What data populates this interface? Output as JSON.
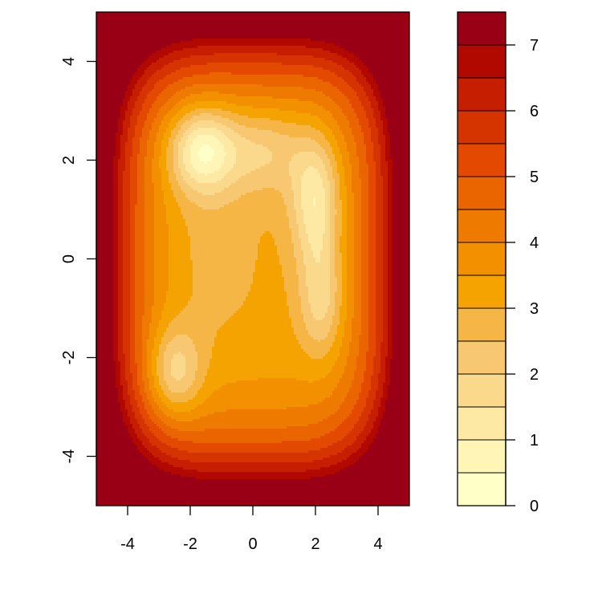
{
  "chart_data": {
    "type": "filled-contour",
    "title": "",
    "xlabel": "",
    "ylabel": "",
    "xlim": [
      -5,
      5
    ],
    "ylim": [
      -5,
      5
    ],
    "x_ticks": [
      -4,
      -2,
      0,
      2,
      4
    ],
    "y_ticks": [
      -4,
      -2,
      0,
      2,
      4
    ],
    "x_tick_labels": [
      "-4",
      "-2",
      "0",
      "2",
      "4"
    ],
    "y_tick_labels": [
      "-4",
      "-2",
      "0",
      "2",
      "4"
    ],
    "grid": false,
    "legend": "right",
    "levels": [
      0,
      0.5,
      1,
      1.5,
      2,
      2.5,
      3,
      3.5,
      4,
      4.5,
      5,
      5.5,
      6,
      6.5,
      7,
      7.5
    ],
    "level_colors": [
      "#FFFFC8",
      "#FFF5B6",
      "#FDE8A4",
      "#FAD98C",
      "#F7C871",
      "#F5B646",
      "#F5A300",
      "#F29000",
      "#EE7B00",
      "#EA6400",
      "#E34A00",
      "#D53300",
      "#C51E00",
      "#B10900",
      "#990015",
      "#7D0025"
    ],
    "colorbar_ticks": [
      0,
      1,
      2,
      3,
      4,
      5,
      6,
      7
    ],
    "colorbar_tick_labels": [
      "0",
      "1",
      "2",
      "3",
      "4",
      "5",
      "6",
      "7"
    ],
    "surface": {
      "base": 3.2,
      "edge_coefficient": 0.019,
      "components": [
        {
          "x": -1.6,
          "y": 2.2,
          "amplitude": -2.8,
          "sx": 0.75,
          "sy": 0.6
        },
        {
          "x": 2.0,
          "y": 1.2,
          "amplitude": -2.2,
          "sx": 0.55,
          "sy": 0.9
        },
        {
          "x": 2.2,
          "y": -0.8,
          "amplitude": -1.6,
          "sx": 0.5,
          "sy": 0.85
        },
        {
          "x": -2.5,
          "y": -2.3,
          "amplitude": -1.9,
          "sx": 0.6,
          "sy": 0.65
        },
        {
          "x": 0.4,
          "y": 2.2,
          "amplitude": -1.3,
          "sx": 0.9,
          "sy": 0.6
        },
        {
          "x": -1.3,
          "y": 0.3,
          "amplitude": -0.4,
          "sx": 1.2,
          "sy": 1.5
        }
      ]
    }
  }
}
